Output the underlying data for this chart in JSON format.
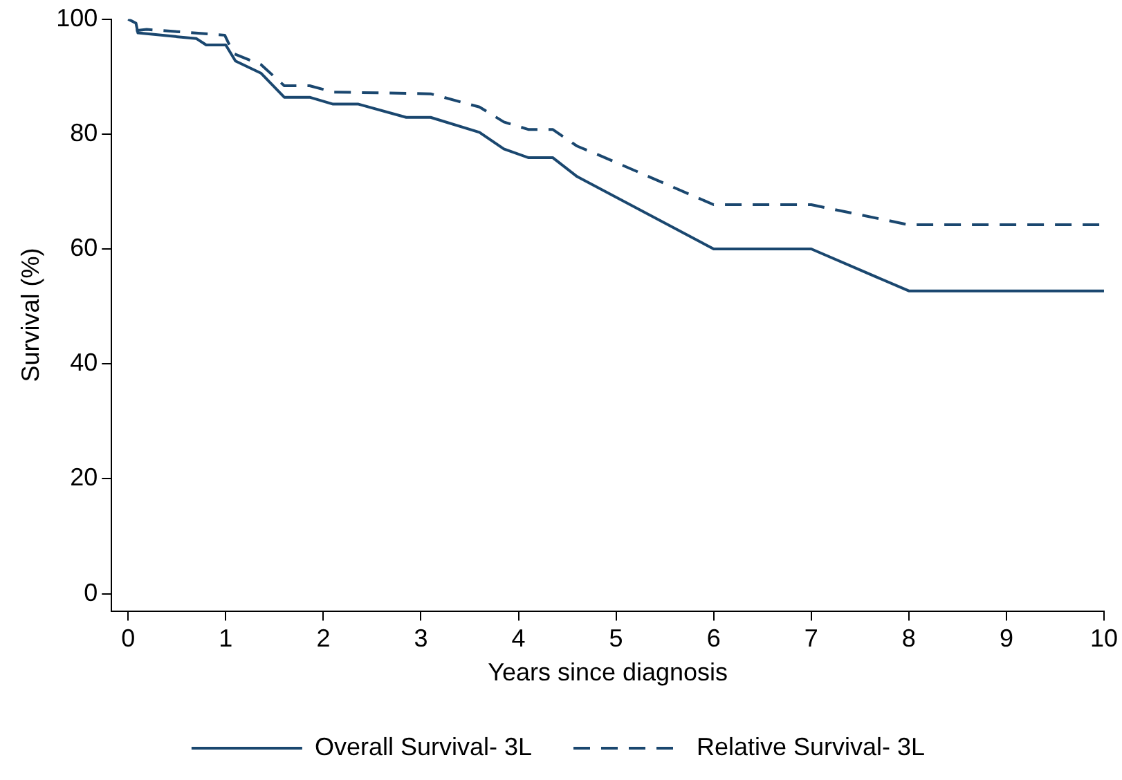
{
  "chart_data": {
    "type": "line",
    "xlabel": "Years since diagnosis",
    "ylabel": "Survival (%)",
    "xlim": [
      -0.17,
      10
    ],
    "xticks": [
      0,
      1,
      2,
      3,
      4,
      5,
      6,
      7,
      8,
      9,
      10
    ],
    "ylim": [
      -3,
      100
    ],
    "yticks": [
      0,
      20,
      40,
      60,
      80,
      100
    ],
    "grid": false,
    "legend": "bottom",
    "marker": "none",
    "series": [
      {
        "name": "Overall Survival- 3L",
        "color": "#1a476f",
        "line_style": "solid",
        "x": [
          0,
          0.08,
          0.1,
          0.7,
          0.8,
          1.0,
          1.1,
          1.36,
          1.6,
          1.86,
          2.1,
          2.36,
          2.85,
          3.1,
          3.6,
          3.85,
          4.1,
          4.35,
          4.6,
          6,
          7,
          8,
          10
        ],
        "values": [
          100,
          99.3,
          97.6,
          96.6,
          95.5,
          95.5,
          92.7,
          90.6,
          86.4,
          86.4,
          85.2,
          85.2,
          82.9,
          82.9,
          80.3,
          77.4,
          75.9,
          75.9,
          72.6,
          60,
          60,
          52.7,
          52.7
        ]
      },
      {
        "name": "Relative Survival- 3L",
        "color": "#1a476f",
        "line_style": "dashed",
        "x": [
          0.08,
          0.19,
          0.99,
          1.08,
          1.36,
          1.6,
          1.86,
          2.1,
          3.1,
          3.6,
          3.85,
          4.1,
          4.35,
          4.6,
          4.83,
          6,
          7,
          8,
          10
        ],
        "values": [
          98,
          98.2,
          97.2,
          94,
          92.1,
          88.4,
          88.4,
          87.3,
          87,
          84.7,
          82.1,
          80.8,
          80.8,
          77.9,
          76.3,
          67.7,
          67.7,
          64.2,
          64.2
        ]
      }
    ]
  }
}
